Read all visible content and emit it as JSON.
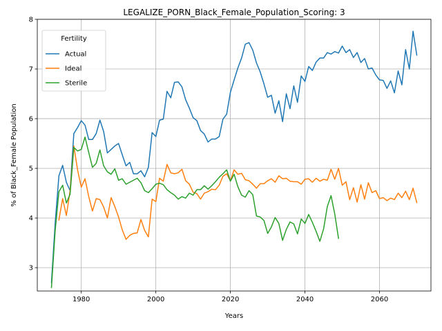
{
  "chart_data": {
    "type": "line",
    "title": "LEGALIZE_PORN_Black_Female_Population_Scoring: 3",
    "xlabel": "Years",
    "ylabel": "% of Black_Female Population",
    "xlim": [
      1968.2,
      2073.8
    ],
    "ylim": [
      2.53,
      8.0
    ],
    "xticks": [
      1980,
      2000,
      2020,
      2040,
      2060
    ],
    "yticks": [
      3,
      4,
      5,
      6,
      7,
      8
    ],
    "grid": true,
    "legend": {
      "title": "Fertility",
      "placement": "upper-left"
    },
    "series": [
      {
        "name": "Actual",
        "color": "#1f77b4",
        "x": [
          1972,
          1973,
          1974,
          1975,
          1976,
          1977,
          1978,
          1979,
          1980,
          1981,
          1982,
          1983,
          1984,
          1985,
          1986,
          1987,
          1988,
          1989,
          1990,
          1991,
          1992,
          1993,
          1994,
          1995,
          1996,
          1997,
          1998,
          1999,
          2000,
          2001,
          2002,
          2003,
          2004,
          2005,
          2006,
          2007,
          2008,
          2009,
          2010,
          2011,
          2012,
          2013,
          2014,
          2015,
          2016,
          2017,
          2018,
          2019,
          2020,
          2021,
          2022,
          2023,
          2024,
          2025,
          2026,
          2027,
          2028,
          2029,
          2030,
          2031,
          2032,
          2033,
          2034,
          2035,
          2036,
          2037,
          2038,
          2039,
          2040,
          2041,
          2042,
          2043,
          2044,
          2045,
          2046,
          2047,
          2048,
          2049,
          2050,
          2051,
          2052,
          2053,
          2054,
          2055,
          2056,
          2057,
          2058,
          2059,
          2060,
          2061,
          2062,
          2063,
          2064,
          2065,
          2066,
          2067,
          2068,
          2069,
          2070
        ],
        "values": [
          2.7,
          3.9,
          4.85,
          5.06,
          4.72,
          4.55,
          5.7,
          5.82,
          5.96,
          5.87,
          5.58,
          5.58,
          5.7,
          5.97,
          5.74,
          5.31,
          5.38,
          5.45,
          5.5,
          5.27,
          5.05,
          5.12,
          4.89,
          4.89,
          4.95,
          4.83,
          5.02,
          5.72,
          5.64,
          5.97,
          5.99,
          6.55,
          6.42,
          6.73,
          6.74,
          6.64,
          6.38,
          6.21,
          6.02,
          5.96,
          5.76,
          5.69,
          5.53,
          5.59,
          5.59,
          5.64,
          5.99,
          6.09,
          6.53,
          6.78,
          7.02,
          7.22,
          7.5,
          7.53,
          7.38,
          7.12,
          6.94,
          6.7,
          6.43,
          6.47,
          6.11,
          6.36,
          5.94,
          6.5,
          6.2,
          6.66,
          6.33,
          6.86,
          6.75,
          7.05,
          6.97,
          7.14,
          7.22,
          7.22,
          7.33,
          7.3,
          7.35,
          7.32,
          7.46,
          7.33,
          7.39,
          7.23,
          7.33,
          7.13,
          7.21,
          7.0,
          7.02,
          6.88,
          6.78,
          6.77,
          6.61,
          6.76,
          6.52,
          6.96,
          6.68,
          7.39,
          7.0,
          7.76,
          7.28
        ]
      },
      {
        "name": "Ideal",
        "color": "#ff7f0e",
        "x": [
          1974,
          1975,
          1976,
          1977,
          1978,
          1979,
          1980,
          1981,
          1982,
          1983,
          1984,
          1985,
          1986,
          1987,
          1988,
          1989,
          1990,
          1991,
          1992,
          1993,
          1994,
          1995,
          1996,
          1997,
          1998,
          1999,
          2000,
          2001,
          2002,
          2003,
          2004,
          2005,
          2006,
          2007,
          2008,
          2009,
          2010,
          2011,
          2012,
          2013,
          2014,
          2015,
          2016,
          2017,
          2018,
          2019,
          2020,
          2021,
          2022,
          2023,
          2024,
          2025,
          2026,
          2027,
          2028,
          2029,
          2030,
          2031,
          2032,
          2033,
          2034,
          2035,
          2036,
          2037,
          2038,
          2039,
          2040,
          2041,
          2042,
          2043,
          2044,
          2045,
          2046,
          2047,
          2048,
          2049,
          2050,
          2051,
          2052,
          2053,
          2054,
          2055,
          2056,
          2057,
          2058,
          2059,
          2060,
          2061,
          2062,
          2063,
          2064,
          2065,
          2066,
          2067,
          2068,
          2069,
          2070
        ],
        "values": [
          3.96,
          4.39,
          4.05,
          4.55,
          5.45,
          4.97,
          4.62,
          4.79,
          4.43,
          4.14,
          4.39,
          4.37,
          4.22,
          4.0,
          4.41,
          4.23,
          4.02,
          3.76,
          3.57,
          3.65,
          3.69,
          3.7,
          3.97,
          3.75,
          3.62,
          4.38,
          4.33,
          4.8,
          4.74,
          5.08,
          4.91,
          4.89,
          4.91,
          4.98,
          4.75,
          4.68,
          4.52,
          4.49,
          4.38,
          4.5,
          4.53,
          4.58,
          4.57,
          4.66,
          4.84,
          4.89,
          4.75,
          4.97,
          4.88,
          4.9,
          4.77,
          4.75,
          4.68,
          4.6,
          4.69,
          4.69,
          4.75,
          4.79,
          4.72,
          4.85,
          4.79,
          4.8,
          4.74,
          4.73,
          4.73,
          4.68,
          4.78,
          4.79,
          4.72,
          4.8,
          4.74,
          4.78,
          4.76,
          4.98,
          4.78,
          5.0,
          4.66,
          4.73,
          4.37,
          4.61,
          4.32,
          4.67,
          4.38,
          4.71,
          4.51,
          4.55,
          4.39,
          4.41,
          4.35,
          4.4,
          4.37,
          4.5,
          4.41,
          4.54,
          4.37,
          4.6,
          4.31
        ]
      },
      {
        "name": "Sterile",
        "color": "#2ca02c",
        "x": [
          1972,
          1973,
          1974,
          1975,
          1976,
          1977,
          1978,
          1979,
          1980,
          1981,
          1982,
          1983,
          1984,
          1985,
          1986,
          1987,
          1988,
          1989,
          1990,
          1991,
          1992,
          1993,
          1994,
          1995,
          1996,
          1997,
          1998,
          1999,
          2000,
          2001,
          2002,
          2003,
          2004,
          2005,
          2006,
          2007,
          2008,
          2009,
          2010,
          2011,
          2012,
          2013,
          2014,
          2015,
          2016,
          2017,
          2018,
          2019,
          2020,
          2021,
          2022,
          2023,
          2024,
          2025,
          2026,
          2027,
          2028,
          2029,
          2030,
          2031,
          2032,
          2033,
          2034,
          2035,
          2036,
          2037,
          2038,
          2039,
          2040,
          2041,
          2042,
          2043,
          2044,
          2045,
          2046,
          2047,
          2048,
          2049
        ],
        "values": [
          2.6,
          3.75,
          4.53,
          4.66,
          4.3,
          4.48,
          5.42,
          5.35,
          5.38,
          5.63,
          5.32,
          5.02,
          5.1,
          5.37,
          5.05,
          4.93,
          4.88,
          4.99,
          4.76,
          4.79,
          4.68,
          4.72,
          4.76,
          4.8,
          4.71,
          4.55,
          4.51,
          4.59,
          4.68,
          4.7,
          4.67,
          4.57,
          4.51,
          4.46,
          4.38,
          4.43,
          4.4,
          4.5,
          4.46,
          4.57,
          4.57,
          4.65,
          4.58,
          4.65,
          4.73,
          4.82,
          4.89,
          4.97,
          4.74,
          4.88,
          4.63,
          4.46,
          4.42,
          4.55,
          4.47,
          4.04,
          4.02,
          3.95,
          3.69,
          3.82,
          4.01,
          3.89,
          3.55,
          3.77,
          3.92,
          3.88,
          3.68,
          3.98,
          3.89,
          4.07,
          3.91,
          3.73,
          3.53,
          3.78,
          4.23,
          4.45,
          4.08,
          3.59
        ]
      }
    ]
  }
}
